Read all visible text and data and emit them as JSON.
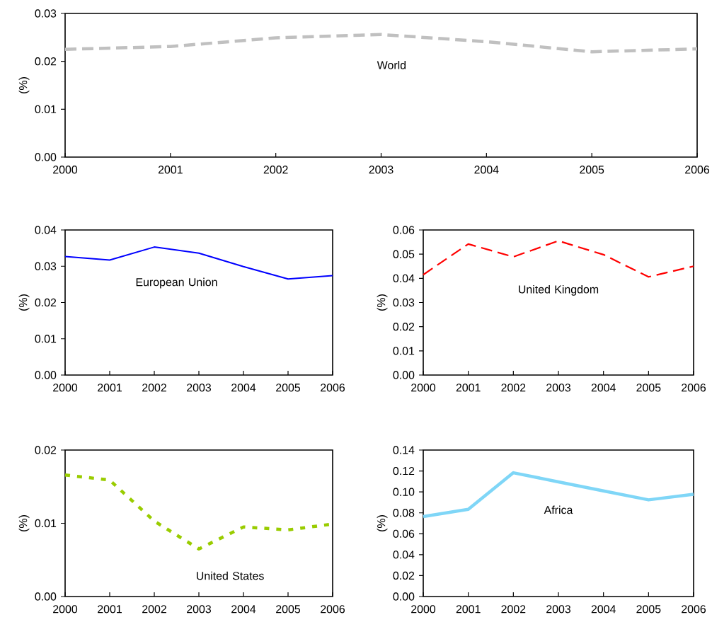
{
  "chart_data": [
    {
      "type": "line",
      "ylabel": "(%)",
      "x": [
        2000,
        2001,
        2002,
        2003,
        2004,
        2005,
        2006
      ],
      "xlim": [
        2000,
        2006
      ],
      "xticks": [
        2000,
        2001,
        2002,
        2003,
        2004,
        2005,
        2006
      ],
      "ylim": [
        0,
        0.03
      ],
      "yticks": [
        {
          "value": 0,
          "label": "0.00"
        },
        {
          "value": 0.01,
          "label": "0.01"
        },
        {
          "value": 0.02,
          "label": "0.02"
        },
        {
          "value": 0.03,
          "label": "0.03"
        }
      ],
      "series": [
        {
          "name": "World",
          "color": "#c0c0c0",
          "line_style": "dashed",
          "values": [
            0.0225,
            0.0231,
            0.0249,
            0.0256,
            0.0241,
            0.022,
            0.0226
          ]
        }
      ]
    },
    {
      "type": "line",
      "ylabel": "(%)",
      "x": [
        2000,
        2001,
        2002,
        2003,
        2004,
        2005,
        2006
      ],
      "xlim": [
        2000,
        2006
      ],
      "xticks": [
        2000,
        2001,
        2002,
        2003,
        2004,
        2005,
        2006
      ],
      "ylim": [
        0,
        0.04
      ],
      "yticks": [
        {
          "value": 0,
          "label": "0.00"
        },
        {
          "value": 0.01,
          "label": "0.01"
        },
        {
          "value": 0.02,
          "label": "0.02"
        },
        {
          "value": 0.03,
          "label": "0.03"
        },
        {
          "value": 0.04,
          "label": "0.04"
        }
      ],
      "series": [
        {
          "name": "European Union",
          "color": "#0000ff",
          "line_style": "solid",
          "values": [
            0.0327,
            0.0317,
            0.0353,
            0.0336,
            0.0299,
            0.0265,
            0.0274
          ]
        }
      ]
    },
    {
      "type": "line",
      "ylabel": "(%)",
      "x": [
        2000,
        2001,
        2002,
        2003,
        2004,
        2005,
        2006
      ],
      "xlim": [
        2000,
        2006
      ],
      "xticks": [
        2000,
        2001,
        2002,
        2003,
        2004,
        2005,
        2006
      ],
      "ylim": [
        0,
        0.06
      ],
      "yticks": [
        {
          "value": 0,
          "label": "0.00"
        },
        {
          "value": 0.01,
          "label": "0.01"
        },
        {
          "value": 0.02,
          "label": "0.02"
        },
        {
          "value": 0.03,
          "label": "0.03"
        },
        {
          "value": 0.04,
          "label": "0.04"
        },
        {
          "value": 0.05,
          "label": "0.05"
        },
        {
          "value": 0.06,
          "label": "0.06"
        }
      ],
      "series": [
        {
          "name": "United Kingdom",
          "color": "#ff0000",
          "line_style": "dashed",
          "values": [
            0.0415,
            0.0542,
            0.0489,
            0.0555,
            0.0498,
            0.0406,
            0.045
          ]
        }
      ]
    },
    {
      "type": "line",
      "ylabel": "(%)",
      "x": [
        2000,
        2001,
        2002,
        2003,
        2004,
        2005,
        2006
      ],
      "xlim": [
        2000,
        2006
      ],
      "xticks": [
        2000,
        2001,
        2002,
        2003,
        2004,
        2005,
        2006
      ],
      "ylim": [
        0,
        0.02
      ],
      "yticks": [
        {
          "value": 0,
          "label": "0.00"
        },
        {
          "value": 0.01,
          "label": "0.01"
        },
        {
          "value": 0.02,
          "label": "0.02"
        }
      ],
      "series": [
        {
          "name": "United States",
          "color": "#99cc00",
          "line_style": "dotted",
          "values": [
            0.0166,
            0.0159,
            0.0103,
            0.0065,
            0.0095,
            0.0091,
            0.0099
          ]
        }
      ]
    },
    {
      "type": "line",
      "ylabel": "(%)",
      "x": [
        2000,
        2001,
        2002,
        2003,
        2004,
        2005,
        2006
      ],
      "xlim": [
        2000,
        2006
      ],
      "xticks": [
        2000,
        2001,
        2002,
        2003,
        2004,
        2005,
        2006
      ],
      "ylim": [
        0,
        0.14
      ],
      "yticks": [
        {
          "value": 0,
          "label": "0.00"
        },
        {
          "value": 0.02,
          "label": "0.02"
        },
        {
          "value": 0.04,
          "label": "0.04"
        },
        {
          "value": 0.06,
          "label": "0.06"
        },
        {
          "value": 0.08,
          "label": "0.08"
        },
        {
          "value": 0.1,
          "label": "0.10"
        },
        {
          "value": 0.12,
          "label": "0.12"
        },
        {
          "value": 0.14,
          "label": "0.14"
        }
      ],
      "series": [
        {
          "name": "Africa",
          "color": "#7fd6f7",
          "line_style": "solid",
          "values": [
            0.0764,
            0.0833,
            0.1183,
            0.1096,
            0.1009,
            0.0924,
            0.0977
          ]
        }
      ]
    }
  ]
}
